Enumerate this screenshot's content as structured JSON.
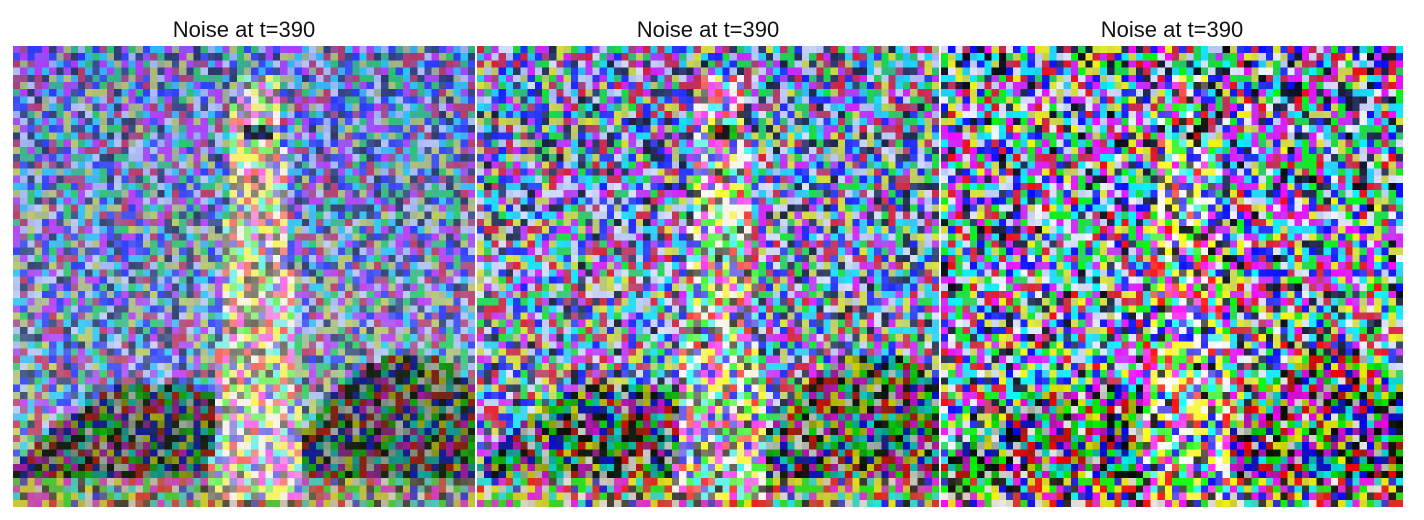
{
  "panels": [
    {
      "title": "Noise at t=390",
      "noise_level": 0.55
    },
    {
      "title": "Noise at t=390",
      "noise_level": 0.75
    },
    {
      "title": "Noise at t=390",
      "noise_level": 0.92
    }
  ],
  "scene": "lighthouse"
}
